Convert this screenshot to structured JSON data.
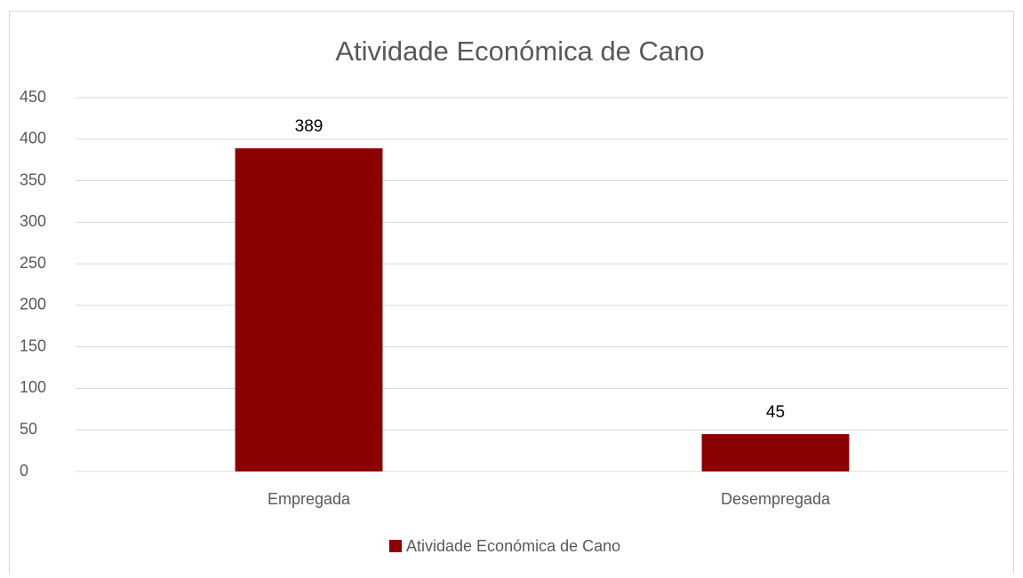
{
  "chart_data": {
    "type": "bar",
    "title": "Atividade Económica de Cano",
    "categories": [
      "Empregada",
      "Desempregada"
    ],
    "series": [
      {
        "name": "Atividade Económica de Cano",
        "color": "#8b0000",
        "values": [
          389,
          45
        ]
      }
    ],
    "ylim": [
      0,
      450
    ],
    "yticks": [
      0,
      50,
      100,
      150,
      200,
      250,
      300,
      350,
      400,
      450
    ],
    "grid": true,
    "legend": "bottom",
    "data_labels": true
  }
}
